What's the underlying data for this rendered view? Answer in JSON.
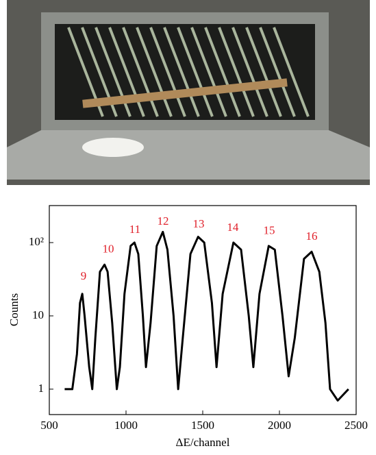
{
  "chart_data": {
    "type": "line",
    "x_label": "ΔE/channel",
    "y_label": "Counts",
    "log_y": true,
    "xlim": [
      500,
      2500
    ],
    "xticks": [
      500,
      1000,
      1500,
      2000,
      2500
    ],
    "ylim": [
      0.45,
      320
    ],
    "yticks": [
      1,
      10,
      {
        "value": 100,
        "label": "10²"
      }
    ],
    "series": [
      {
        "color": "#000000",
        "x": [
          600,
          650,
          680,
          700,
          715,
          730,
          760,
          780,
          800,
          830,
          860,
          880,
          910,
          940,
          960,
          990,
          1030,
          1055,
          1080,
          1110,
          1130,
          1160,
          1200,
          1240,
          1270,
          1310,
          1340,
          1370,
          1420,
          1470,
          1510,
          1560,
          1590,
          1630,
          1700,
          1750,
          1800,
          1830,
          1870,
          1930,
          1970,
          2020,
          2060,
          2100,
          2160,
          2210,
          2260,
          2300,
          2330,
          2380,
          2450
        ],
        "values": [
          1,
          1,
          3,
          15,
          20,
          10,
          2,
          1,
          5,
          40,
          50,
          40,
          8,
          1,
          2,
          20,
          90,
          100,
          70,
          10,
          2,
          8,
          90,
          140,
          80,
          10,
          1,
          5,
          70,
          120,
          100,
          15,
          2,
          20,
          100,
          80,
          10,
          2,
          20,
          90,
          80,
          10,
          1.5,
          5,
          60,
          75,
          40,
          8,
          1,
          0.7,
          1
        ]
      }
    ],
    "annotations": [
      {
        "text": "9",
        "x": 723,
        "y": 34
      },
      {
        "text": "10",
        "x": 884,
        "y": 80
      },
      {
        "text": "11",
        "x": 1058,
        "y": 147
      },
      {
        "text": "12",
        "x": 1241,
        "y": 190
      },
      {
        "text": "13",
        "x": 1473,
        "y": 175
      },
      {
        "text": "14",
        "x": 1696,
        "y": 157
      },
      {
        "text": "15",
        "x": 1933,
        "y": 143
      },
      {
        "text": "16",
        "x": 2210,
        "y": 118
      }
    ],
    "annotation_color": "#e0202a"
  }
}
